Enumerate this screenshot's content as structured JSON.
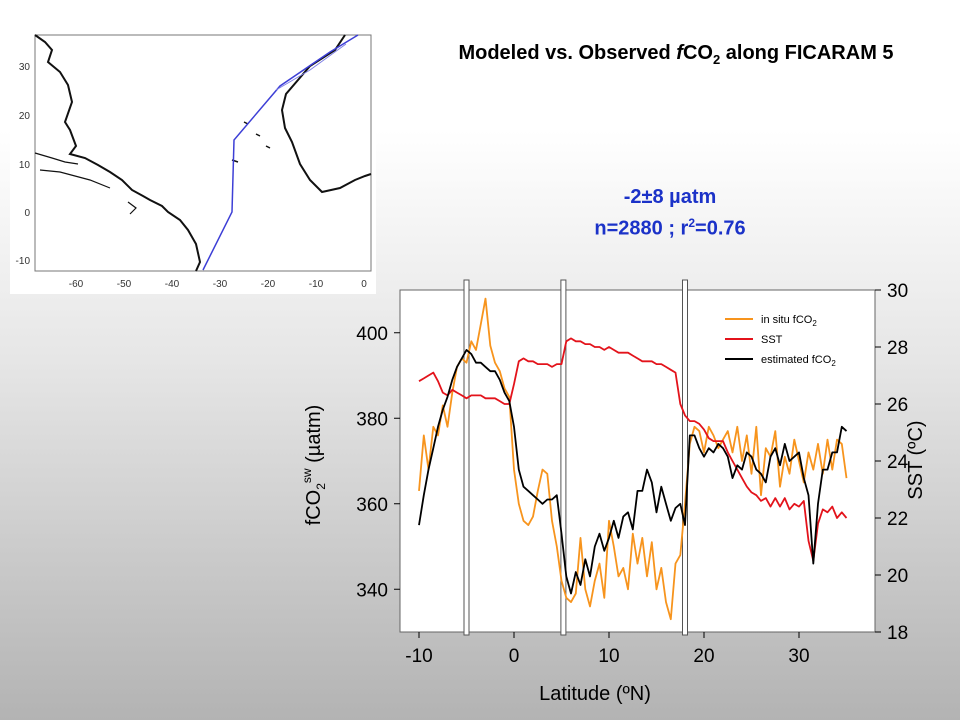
{
  "slide": {
    "title_pre": "Modeled vs. Observed ",
    "title_f": "f",
    "title_co": "CO",
    "title_sub": "2",
    "title_post": " along FICARAM 5",
    "stat_mean": "-2±8 µatm",
    "stat_n": "n=2880  ;  r",
    "stat_sup": "2",
    "stat_val": "=0.76"
  },
  "map": {
    "x_ticks": [
      "-60",
      "-50",
      "-40",
      "-30",
      "-20",
      "-10",
      "0"
    ],
    "y_ticks": [
      "30",
      "20",
      "10",
      "0",
      "-10"
    ]
  },
  "chart_data": {
    "type": "line",
    "xlabel": "Latitude (ºN)",
    "ylabel": "fCO2 sw (µatm)",
    "y2label": "SST (ºC)",
    "xlim": [
      -12,
      38
    ],
    "ylim": [
      330,
      410
    ],
    "y2lim": [
      18,
      30
    ],
    "x_ticks": [
      "-10",
      "0",
      "10",
      "20",
      "30"
    ],
    "y_ticks": [
      "400",
      "380",
      "360",
      "340"
    ],
    "y2_ticks": [
      "30",
      "28",
      "26",
      "24",
      "22",
      "20",
      "18"
    ],
    "legend": {
      "position": "top-right",
      "items": [
        {
          "label": "in situ fCO",
          "sub": "2",
          "color": "#f7941d"
        },
        {
          "label": "SST",
          "sub": "",
          "color": "#e3131b"
        },
        {
          "label": "estimated fCO",
          "sub": "2",
          "color": "#000000"
        }
      ]
    },
    "gap_markers_x": [
      -5,
      5.2,
      18
    ],
    "series": [
      {
        "name": "in situ fCO2",
        "axis": "left",
        "color": "#f7941d",
        "x": [
          -10,
          -9.5,
          -9,
          -8.5,
          -8,
          -7.5,
          -7,
          -6.5,
          -6,
          -5.5,
          -5,
          -4.5,
          -4,
          -3.5,
          -3,
          -2.5,
          -2,
          -1.5,
          -1,
          -0.5,
          0,
          0.5,
          1,
          1.5,
          2,
          2.5,
          3,
          3.5,
          4,
          4.5,
          5,
          5.5,
          6,
          6.5,
          7,
          7.5,
          8,
          8.5,
          9,
          9.5,
          10,
          10.5,
          11,
          11.5,
          12,
          12.5,
          13,
          13.5,
          14,
          14.5,
          15,
          15.5,
          16,
          16.5,
          17,
          17.5,
          18,
          18.5,
          19,
          19.5,
          20,
          20.5,
          21,
          21.5,
          22,
          22.5,
          23,
          23.5,
          24,
          24.5,
          25,
          25.5,
          26,
          26.5,
          27,
          27.5,
          28,
          28.5,
          29,
          29.5,
          30,
          30.5,
          31,
          31.5,
          32,
          32.5,
          33,
          33.5,
          34,
          34.5,
          35
        ],
        "y": [
          363,
          376,
          368,
          378,
          376,
          383,
          378,
          386,
          392,
          394,
          393,
          398,
          396,
          402,
          408,
          397,
          393,
          391,
          387,
          385,
          368,
          360,
          356,
          355,
          357,
          363,
          368,
          367,
          356,
          350,
          342,
          338,
          337,
          339,
          352,
          340,
          336,
          342,
          346,
          338,
          356,
          350,
          343,
          345,
          340,
          353,
          346,
          352,
          343,
          351,
          340,
          345,
          337,
          333,
          346,
          348,
          360,
          374,
          378,
          377,
          372,
          378,
          376,
          373,
          375,
          377,
          372,
          378,
          370,
          376,
          367,
          378,
          362,
          373,
          371,
          377,
          364,
          371,
          367,
          375,
          370,
          365,
          372,
          368,
          374,
          367,
          375,
          368,
          375,
          374,
          366
        ]
      },
      {
        "name": "SST",
        "axis": "right",
        "color": "#e3131b",
        "x": [
          -10,
          -9.5,
          -9,
          -8.5,
          -8,
          -7.5,
          -7,
          -6.5,
          -6,
          -5.5,
          -5,
          -4.5,
          -4,
          -3.5,
          -3,
          -2.5,
          -2,
          -1.5,
          -1,
          -0.5,
          0,
          0.5,
          1,
          1.5,
          2,
          2.5,
          3,
          3.5,
          4,
          4.5,
          5,
          5.5,
          6,
          6.5,
          7,
          7.5,
          8,
          8.5,
          9,
          9.5,
          10,
          10.5,
          11,
          11.5,
          12,
          12.5,
          13,
          13.5,
          14,
          14.5,
          15,
          15.5,
          16,
          16.5,
          17,
          17.5,
          18,
          18.5,
          19,
          19.5,
          20,
          20.5,
          21,
          21.5,
          22,
          22.5,
          23,
          23.5,
          24,
          24.5,
          25,
          25.5,
          26,
          26.5,
          27,
          27.5,
          28,
          28.5,
          29,
          29.5,
          30,
          30.5,
          31,
          31.5,
          32,
          32.5,
          33,
          33.5,
          34,
          34.5,
          35
        ],
        "y": [
          26.8,
          26.9,
          27.0,
          27.1,
          26.8,
          26.4,
          26.3,
          26.5,
          26.4,
          26.3,
          26.2,
          26.3,
          26.3,
          26.3,
          26.2,
          26.2,
          26.2,
          26.1,
          26.0,
          26.0,
          26.7,
          27.5,
          27.6,
          27.5,
          27.5,
          27.4,
          27.4,
          27.4,
          27.3,
          27.4,
          27.4,
          28.2,
          28.3,
          28.2,
          28.2,
          28.1,
          28.1,
          28.0,
          28.0,
          27.9,
          28.0,
          27.9,
          27.8,
          27.8,
          27.8,
          27.7,
          27.6,
          27.5,
          27.5,
          27.5,
          27.4,
          27.4,
          27.3,
          27.2,
          27.1,
          26.0,
          25.6,
          25.4,
          25.4,
          25.3,
          25.1,
          24.8,
          24.7,
          24.7,
          24.7,
          24.3,
          24.0,
          23.7,
          23.4,
          23.1,
          22.9,
          22.8,
          22.6,
          22.7,
          22.4,
          22.7,
          22.4,
          22.7,
          22.3,
          22.5,
          22.4,
          22.6,
          21.2,
          20.5,
          21.8,
          22.3,
          22.2,
          22.4,
          22.0,
          22.2,
          22.0
        ]
      },
      {
        "name": "estimated fCO2",
        "axis": "left",
        "color": "#000000",
        "x": [
          -10,
          -9.5,
          -9,
          -8.5,
          -8,
          -7.5,
          -7,
          -6.5,
          -6,
          -5.5,
          -5,
          -4.5,
          -4,
          -3.5,
          -3,
          -2.5,
          -2,
          -1.5,
          -1,
          -0.5,
          0,
          0.5,
          1,
          1.5,
          2,
          2.5,
          3,
          3.5,
          4,
          4.5,
          5,
          5.5,
          6,
          6.5,
          7,
          7.5,
          8,
          8.5,
          9,
          9.5,
          10,
          10.5,
          11,
          11.5,
          12,
          12.5,
          13,
          13.5,
          14,
          14.5,
          15,
          15.5,
          16,
          16.5,
          17,
          17.5,
          18,
          18.5,
          19,
          19.5,
          20,
          20.5,
          21,
          21.5,
          22,
          22.5,
          23,
          23.5,
          24,
          24.5,
          25,
          25.5,
          26,
          26.5,
          27,
          27.5,
          28,
          28.5,
          29,
          29.5,
          30,
          30.5,
          31,
          31.5,
          32,
          32.5,
          33,
          33.5,
          34,
          34.5,
          35
        ],
        "y": [
          355,
          362,
          368,
          373,
          378,
          382,
          385,
          389,
          392,
          394,
          396,
          395,
          393,
          393,
          392,
          391,
          391,
          389,
          386,
          384,
          378,
          368,
          364,
          363,
          362,
          361,
          360,
          361,
          361,
          362,
          353,
          343,
          339,
          344,
          341,
          347,
          343,
          350,
          353,
          349,
          352,
          356,
          352,
          357,
          358,
          354,
          363,
          363,
          368,
          365,
          358,
          364,
          360,
          356,
          359,
          360,
          355,
          376,
          376,
          373,
          371,
          373,
          372,
          374,
          373,
          371,
          366,
          369,
          368,
          372,
          371,
          368,
          367,
          365,
          371,
          373,
          369,
          374,
          370,
          371,
          372,
          366,
          362,
          346,
          360,
          368,
          368,
          372,
          372,
          378,
          377
        ]
      }
    ]
  }
}
